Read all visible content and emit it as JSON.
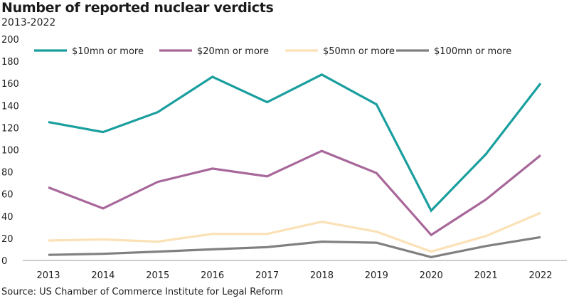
{
  "chart_data": {
    "type": "line",
    "title": "Number of reported nuclear verdicts",
    "subtitle": "2013-2022",
    "source": "Source: US Chamber of Commerce Institute for Legal Reform",
    "xlabel": "",
    "ylabel": "",
    "x": [
      "2013",
      "2014",
      "2015",
      "2016",
      "2017",
      "2018",
      "2019",
      "2020",
      "2021",
      "2022"
    ],
    "ylim": [
      0,
      200
    ],
    "yticks": [
      0,
      20,
      40,
      60,
      80,
      100,
      120,
      140,
      160,
      180,
      200
    ],
    "grid": false,
    "legend_position": "top",
    "series": [
      {
        "name": "$10mn or more",
        "color": "#1a9e9e",
        "values": [
          125,
          116,
          134,
          166,
          143,
          168,
          141,
          45,
          96,
          160
        ]
      },
      {
        "name": "$20mn or more",
        "color": "#a8679a",
        "values": [
          66,
          47,
          71,
          83,
          76,
          99,
          79,
          23,
          55,
          95
        ]
      },
      {
        "name": "$50mn or more",
        "color": "#fbe1b6",
        "values": [
          18,
          19,
          17,
          24,
          24,
          35,
          26,
          8,
          22,
          43
        ]
      },
      {
        "name": "$100mn or more",
        "color": "#808080",
        "values": [
          5,
          6,
          8,
          10,
          12,
          17,
          16,
          3,
          13,
          21
        ]
      }
    ]
  }
}
